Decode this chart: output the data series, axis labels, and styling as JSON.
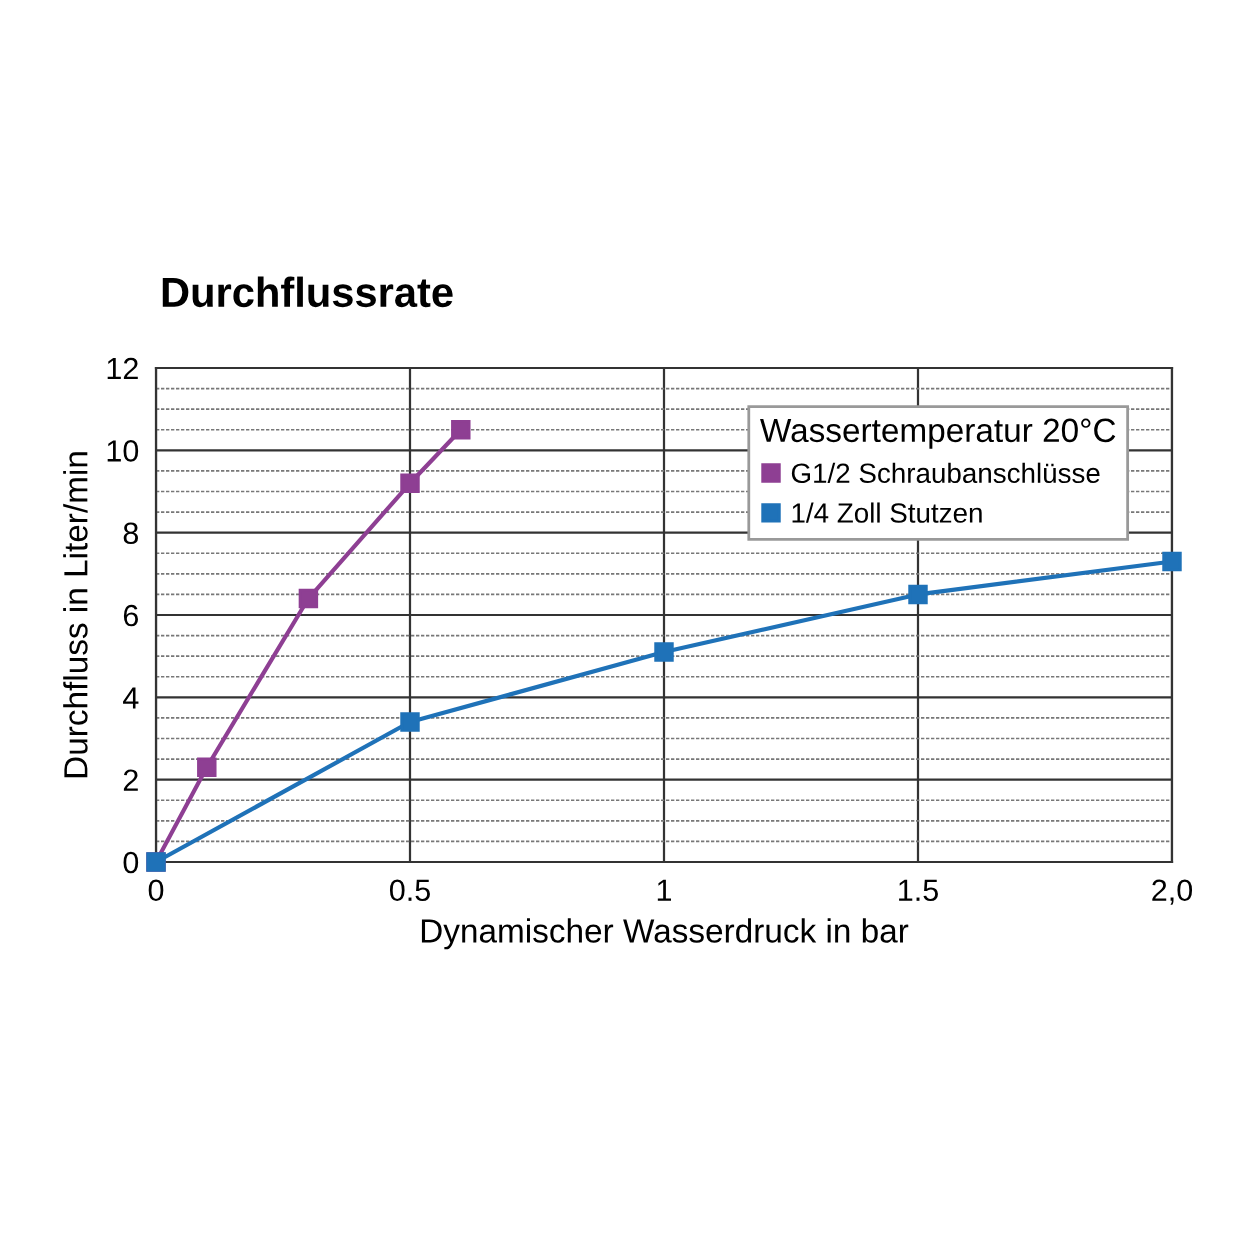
{
  "chart_data": {
    "type": "line",
    "title": "Durchflussrate",
    "xlabel": "Dynamischer Wasserdruck in bar",
    "ylabel": "Durchfluss in Liter/min",
    "legend_title": "Wassertemperatur 20°C",
    "series": [
      {
        "name": "G1/2 Schraubanschlüsse",
        "color": "#8e3f93",
        "x": [
          0,
          0.1,
          0.3,
          0.5,
          0.6
        ],
        "values": [
          0,
          2.3,
          6.4,
          9.2,
          10.5
        ]
      },
      {
        "name": "1/4 Zoll Stutzen",
        "color": "#1f72b8",
        "x": [
          0,
          0.5,
          1,
          1.5,
          2
        ],
        "values": [
          0,
          3.4,
          5.1,
          6.5,
          7.3
        ]
      }
    ],
    "xlim": [
      0,
      2
    ],
    "xticks": [
      0,
      0.5,
      1,
      1.5,
      {
        "value": 2,
        "label": "2,0"
      }
    ],
    "ylim": [
      0,
      12
    ],
    "yticks": [
      0,
      {
        "value": 0.5,
        "label": null
      },
      {
        "value": 1,
        "label": null
      },
      {
        "value": 1.5,
        "label": null
      },
      2,
      {
        "value": 2.5,
        "label": null
      },
      {
        "value": 3,
        "label": null
      },
      {
        "value": 3.5,
        "label": null
      },
      4,
      {
        "value": 4.5,
        "label": null
      },
      {
        "value": 5,
        "label": null
      },
      {
        "value": 5.5,
        "label": null
      },
      6,
      {
        "value": 6.5,
        "label": null
      },
      {
        "value": 7,
        "label": null
      },
      {
        "value": 7.5,
        "label": null
      },
      8,
      {
        "value": 8.5,
        "label": null
      },
      {
        "value": 9,
        "label": null
      },
      {
        "value": 9.5,
        "label": null
      },
      10,
      {
        "value": 10.5,
        "label": null
      },
      {
        "value": 11,
        "label": null
      },
      {
        "value": 11.5,
        "label": null
      },
      12
    ],
    "grid": true,
    "legend": "top right",
    "marker": "square",
    "line_style": "solid"
  }
}
